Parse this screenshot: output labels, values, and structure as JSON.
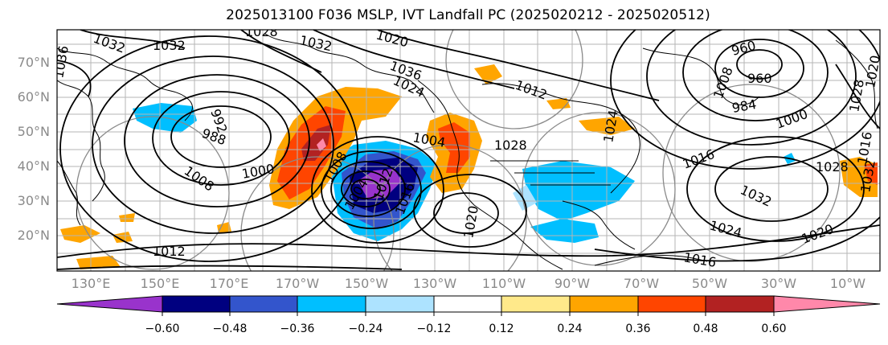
{
  "title": "2025013100 F036 MSLP, IVT Landfall PC (2025020212 - 2025020512)",
  "latitude_labels": [
    "70°N",
    "60°N",
    "50°N",
    "40°N",
    "30°N",
    "20°N"
  ],
  "longitude_labels": [
    "130°E",
    "150°E",
    "170°E",
    "170°W",
    "150°W",
    "130°W",
    "110°W",
    "90°W",
    "70°W",
    "50°W",
    "30°W",
    "10°W"
  ],
  "colorbar": {
    "tick_labels": [
      "−0.60",
      "−0.48",
      "−0.36",
      "−0.24",
      "−0.12",
      "0.12",
      "0.24",
      "0.36",
      "0.48",
      "0.60"
    ],
    "colors": [
      "#9933cc",
      "#000080",
      "#3355cc",
      "#00bfff",
      "#ade3ff",
      "#ffffff",
      "#ffe98a",
      "#ffa500",
      "#ff4500",
      "#b22222",
      "#ff88aa"
    ]
  },
  "contour_labels": [
    "1032",
    "1032",
    "1028",
    "1032",
    "1020",
    "1036",
    "1036",
    "1024",
    "992",
    "988",
    "1008",
    "1000",
    "1008",
    "1004",
    "1012",
    "1016",
    "1004",
    "1020",
    "1028",
    "1012",
    "1016",
    "1020",
    "1024",
    "1028",
    "1032",
    "960",
    "960",
    "984",
    "1000",
    "1016",
    "1016",
    "1028",
    "1032",
    "1024",
    "1020",
    "1008",
    "1012"
  ]
}
